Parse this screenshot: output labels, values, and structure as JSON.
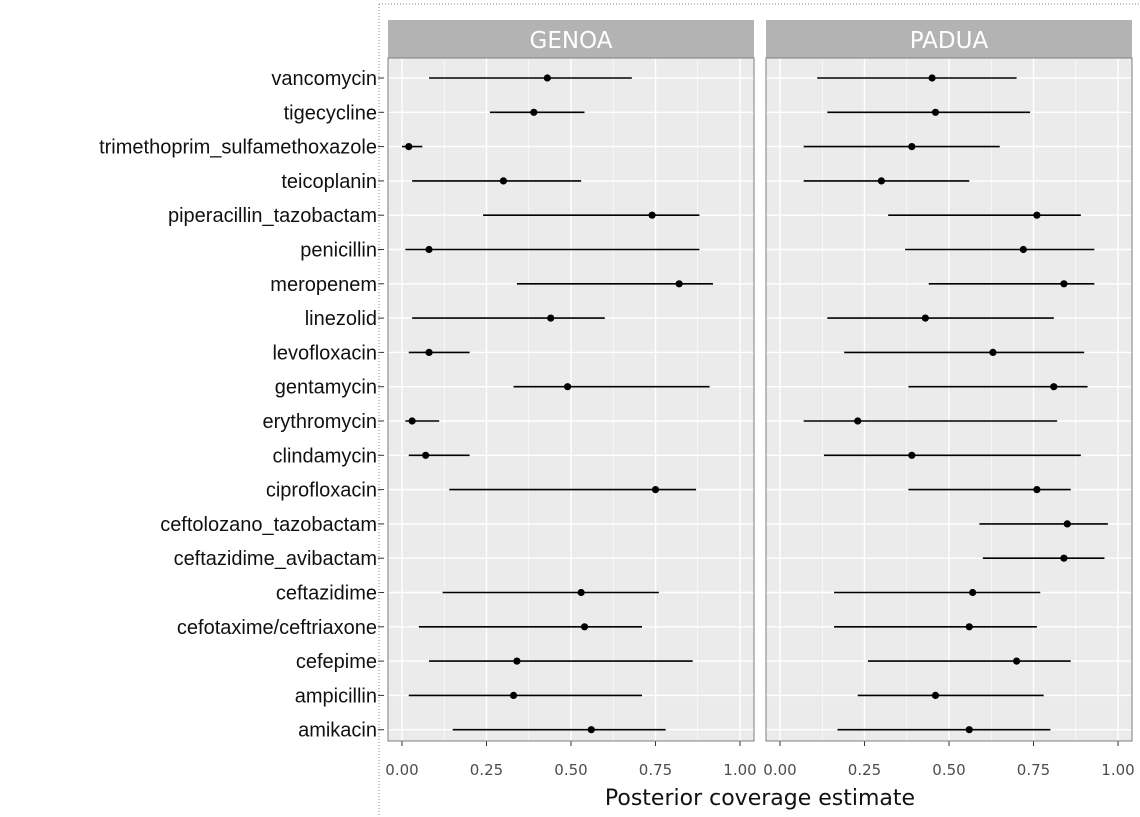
{
  "chart_data": {
    "type": "interval",
    "xlabel": "Posterior coverage estimate",
    "xlim": [
      0,
      1
    ],
    "xticks": [
      "0.00",
      "0.25",
      "0.50",
      "0.75",
      "1.00"
    ],
    "categories": [
      "vancomycin",
      "tigecycline",
      "trimethoprim_sulfamethoxazole",
      "teicoplanin",
      "piperacillin_tazobactam",
      "penicillin",
      "meropenem",
      "linezolid",
      "levofloxacin",
      "gentamycin",
      "erythromycin",
      "clindamycin",
      "ciprofloxacin",
      "ceftolozano_tazobactam",
      "ceftazidime_avibactam",
      "ceftazidime",
      "cefotaxime/ceftriaxone",
      "cefepime",
      "ampicillin",
      "amikacin"
    ],
    "panels": [
      {
        "name": "GENOA",
        "estimates": [
          {
            "mean": 0.43,
            "lower": 0.08,
            "upper": 0.68
          },
          {
            "mean": 0.39,
            "lower": 0.26,
            "upper": 0.54
          },
          {
            "mean": 0.02,
            "lower": 0.0,
            "upper": 0.06
          },
          {
            "mean": 0.3,
            "lower": 0.03,
            "upper": 0.53
          },
          {
            "mean": 0.74,
            "lower": 0.24,
            "upper": 0.88
          },
          {
            "mean": 0.08,
            "lower": 0.01,
            "upper": 0.88
          },
          {
            "mean": 0.82,
            "lower": 0.34,
            "upper": 0.92
          },
          {
            "mean": 0.44,
            "lower": 0.03,
            "upper": 0.6
          },
          {
            "mean": 0.08,
            "lower": 0.02,
            "upper": 0.2
          },
          {
            "mean": 0.49,
            "lower": 0.33,
            "upper": 0.91
          },
          {
            "mean": 0.03,
            "lower": 0.01,
            "upper": 0.11
          },
          {
            "mean": 0.07,
            "lower": 0.02,
            "upper": 0.2
          },
          {
            "mean": 0.75,
            "lower": 0.14,
            "upper": 0.87
          },
          null,
          null,
          {
            "mean": 0.53,
            "lower": 0.12,
            "upper": 0.76
          },
          {
            "mean": 0.54,
            "lower": 0.05,
            "upper": 0.71
          },
          {
            "mean": 0.34,
            "lower": 0.08,
            "upper": 0.86
          },
          {
            "mean": 0.33,
            "lower": 0.02,
            "upper": 0.71
          },
          {
            "mean": 0.56,
            "lower": 0.15,
            "upper": 0.78
          }
        ]
      },
      {
        "name": "PADUA",
        "estimates": [
          {
            "mean": 0.45,
            "lower": 0.11,
            "upper": 0.7
          },
          {
            "mean": 0.46,
            "lower": 0.14,
            "upper": 0.74
          },
          {
            "mean": 0.39,
            "lower": 0.07,
            "upper": 0.65
          },
          {
            "mean": 0.3,
            "lower": 0.07,
            "upper": 0.56
          },
          {
            "mean": 0.76,
            "lower": 0.32,
            "upper": 0.89
          },
          {
            "mean": 0.72,
            "lower": 0.37,
            "upper": 0.93
          },
          {
            "mean": 0.84,
            "lower": 0.44,
            "upper": 0.93
          },
          {
            "mean": 0.43,
            "lower": 0.14,
            "upper": 0.81
          },
          {
            "mean": 0.63,
            "lower": 0.19,
            "upper": 0.9
          },
          {
            "mean": 0.81,
            "lower": 0.38,
            "upper": 0.91
          },
          {
            "mean": 0.23,
            "lower": 0.07,
            "upper": 0.82
          },
          {
            "mean": 0.39,
            "lower": 0.13,
            "upper": 0.89
          },
          {
            "mean": 0.76,
            "lower": 0.38,
            "upper": 0.86
          },
          {
            "mean": 0.85,
            "lower": 0.59,
            "upper": 0.97
          },
          {
            "mean": 0.84,
            "lower": 0.6,
            "upper": 0.96
          },
          {
            "mean": 0.57,
            "lower": 0.16,
            "upper": 0.77
          },
          {
            "mean": 0.56,
            "lower": 0.16,
            "upper": 0.76
          },
          {
            "mean": 0.7,
            "lower": 0.26,
            "upper": 0.86
          },
          {
            "mean": 0.46,
            "lower": 0.23,
            "upper": 0.78
          },
          {
            "mean": 0.56,
            "lower": 0.17,
            "upper": 0.8
          }
        ]
      }
    ],
    "grid": true,
    "colors": {
      "panel_background": "#ebebeb",
      "gridline": "#ffffff",
      "strip_background": "#b3b3b3",
      "strip_text": "#ffffff",
      "point_and_bar": "#000000",
      "panel_border": "#7f7f7f"
    }
  }
}
